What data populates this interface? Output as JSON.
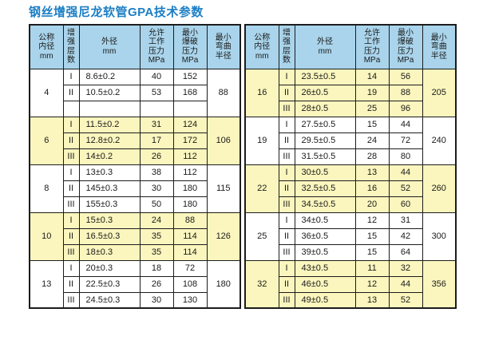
{
  "title": "钢丝增强尼龙软管GPA技术参数",
  "colors": {
    "page_bg": "#ffffff",
    "title_color": "#1b7ec5",
    "header_bg": "#a9d4eb",
    "yellow_bg": "#fbf6be",
    "white_bg": "#ffffff",
    "border": "#1c1c1c",
    "text": "#1a1a1a"
  },
  "table": {
    "header": {
      "inner_dia": "公称\n内径\nmm",
      "layers": "增\n强\n层\n数",
      "outer_dia": "外径\nmm",
      "working_pressure": "允许\n工作\n压力\nMPa",
      "burst_pressure": "最小\n爆破\n压力\nMPa",
      "bend_radius": "最小\n弯曲\n半径"
    },
    "left_groups": [
      {
        "id": "4",
        "bg": "white",
        "bend_radius": "88",
        "rows": [
          {
            "layer": "I",
            "od": "8.6±0.2",
            "wp": "40",
            "bp": "152"
          },
          {
            "layer": "II",
            "od": "10.5±0.2",
            "wp": "53",
            "bp": "168"
          },
          {
            "layer": "",
            "od": "",
            "wp": "",
            "bp": ""
          }
        ]
      },
      {
        "id": "6",
        "bg": "yellow",
        "bend_radius": "106",
        "rows": [
          {
            "layer": "I",
            "od": "11.5±0.2",
            "wp": "31",
            "bp": "124"
          },
          {
            "layer": "II",
            "od": "12.8±0.2",
            "wp": "17",
            "bp": "172"
          },
          {
            "layer": "III",
            "od": "14±0.2",
            "wp": "26",
            "bp": "112"
          }
        ]
      },
      {
        "id": "8",
        "bg": "white",
        "bend_radius": "115",
        "rows": [
          {
            "layer": "I",
            "od": "13±0.3",
            "wp": "38",
            "bp": "112"
          },
          {
            "layer": "II",
            "od": "145±0.3",
            "wp": "30",
            "bp": "180"
          },
          {
            "layer": "III",
            "od": "155±0.3",
            "wp": "50",
            "bp": "180"
          }
        ]
      },
      {
        "id": "10",
        "bg": "yellow",
        "bend_radius": "126",
        "rows": [
          {
            "layer": "I",
            "od": "15±0.3",
            "wp": "24",
            "bp": "88"
          },
          {
            "layer": "II",
            "od": "16.5±0.3",
            "wp": "35",
            "bp": "114"
          },
          {
            "layer": "III",
            "od": "18±0.3",
            "wp": "35",
            "bp": "114"
          }
        ]
      },
      {
        "id": "13",
        "bg": "white",
        "bend_radius": "180",
        "rows": [
          {
            "layer": "I",
            "od": "20±0.3",
            "wp": "18",
            "bp": "72"
          },
          {
            "layer": "II",
            "od": "22.5±0.3",
            "wp": "26",
            "bp": "108"
          },
          {
            "layer": "III",
            "od": "24.5±0.3",
            "wp": "30",
            "bp": "130"
          }
        ]
      }
    ],
    "right_groups": [
      {
        "id": "16",
        "bg": "yellow",
        "bend_radius": "205",
        "rows": [
          {
            "layer": "I",
            "od": "23.5±0.5",
            "wp": "14",
            "bp": "56"
          },
          {
            "layer": "II",
            "od": "26±0.5",
            "wp": "19",
            "bp": "88"
          },
          {
            "layer": "III",
            "od": "28±0.5",
            "wp": "25",
            "bp": "96"
          }
        ]
      },
      {
        "id": "19",
        "bg": "white",
        "bend_radius": "240",
        "rows": [
          {
            "layer": "I",
            "od": "27.5±0.5",
            "wp": "15",
            "bp": "44"
          },
          {
            "layer": "II",
            "od": "29.5±0.5",
            "wp": "24",
            "bp": "72"
          },
          {
            "layer": "III",
            "od": "31.5±0.5",
            "wp": "28",
            "bp": "80"
          }
        ]
      },
      {
        "id": "22",
        "bg": "yellow",
        "bend_radius": "260",
        "rows": [
          {
            "layer": "I",
            "od": "30±0.5",
            "wp": "13",
            "bp": "44"
          },
          {
            "layer": "II",
            "od": "32.5±0.5",
            "wp": "16",
            "bp": "52"
          },
          {
            "layer": "III",
            "od": "34.5±0.5",
            "wp": "20",
            "bp": "60"
          }
        ]
      },
      {
        "id": "25",
        "bg": "white",
        "bend_radius": "300",
        "rows": [
          {
            "layer": "I",
            "od": "34±0.5",
            "wp": "12",
            "bp": "31"
          },
          {
            "layer": "II",
            "od": "36±0.5",
            "wp": "15",
            "bp": "42"
          },
          {
            "layer": "III",
            "od": "39±0.5",
            "wp": "15",
            "bp": "64"
          }
        ]
      },
      {
        "id": "32",
        "bg": "yellow",
        "bend_radius": "356",
        "rows": [
          {
            "layer": "I",
            "od": "43±0.5",
            "wp": "11",
            "bp": "32"
          },
          {
            "layer": "II",
            "od": "46±0.5",
            "wp": "12",
            "bp": "44"
          },
          {
            "layer": "III",
            "od": "49±0.5",
            "wp": "13",
            "bp": "52"
          }
        ]
      }
    ]
  }
}
